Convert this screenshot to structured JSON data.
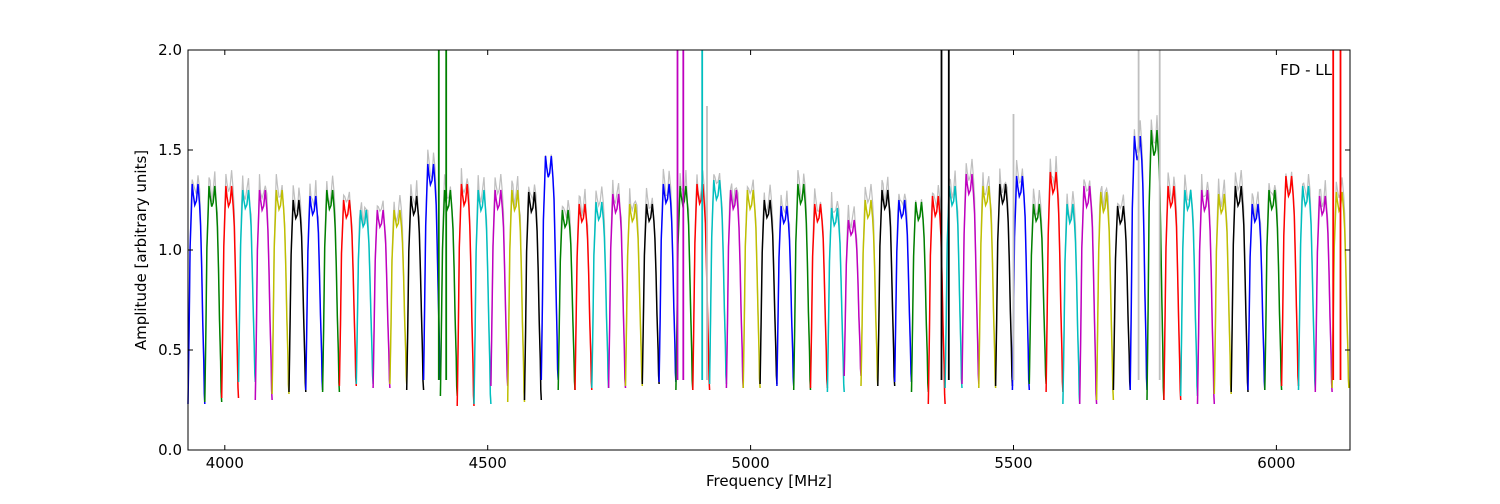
{
  "chart_data": {
    "type": "line",
    "annotation": "FD - LL",
    "xlabel": "Frequency [MHz]",
    "ylabel": "Amplitude [arbitrary units]",
    "xlim": [
      3930,
      6140
    ],
    "ylim": [
      0.0,
      2.0
    ],
    "x_ticks": [
      4000,
      4500,
      5000,
      5500,
      6000
    ],
    "x_tick_labels": [
      "4000",
      "4500",
      "5000",
      "5500",
      "6000"
    ],
    "y_ticks": [
      0.0,
      0.5,
      1.0,
      1.5,
      2.0
    ],
    "y_tick_labels": [
      "0.0",
      "0.5",
      "1.0",
      "1.5",
      "2.0"
    ],
    "grid": false,
    "background_series_color": "#bfbfbf",
    "color_cycle": [
      "#0000ff",
      "#008000",
      "#ff0000",
      "#00bfbf",
      "#bf00bf",
      "#bfbf00",
      "#000000"
    ],
    "channel_width_mhz": 32,
    "channel_profile": {
      "x_offsets": [
        0,
        2,
        4,
        6,
        8,
        10,
        13,
        16,
        19,
        22,
        24,
        26,
        28,
        30,
        31,
        32
      ],
      "shape": [
        0.25,
        0.6,
        1.0,
        1.15,
        1.3,
        1.25,
        1.2,
        1.22,
        1.3,
        1.2,
        1.1,
        0.9,
        0.65,
        0.45,
        0.3,
        0.25
      ]
    },
    "channel_starts": [
      3930,
      3962,
      3994,
      4026,
      4058,
      4090,
      4122,
      4154,
      4186,
      4218,
      4250,
      4282,
      4314,
      4346,
      4378,
      4410,
      4442,
      4474,
      4506,
      4538,
      4570,
      4602,
      4634,
      4666,
      4698,
      4730,
      4762,
      4794,
      4826,
      4858,
      4890,
      4922,
      4954,
      4986,
      5018,
      5050,
      5082,
      5114,
      5146,
      5178,
      5210,
      5242,
      5274,
      5306,
      5338,
      5370,
      5402,
      5434,
      5466,
      5498,
      5530,
      5562,
      5594,
      5626,
      5658,
      5690,
      5722,
      5754,
      5786,
      5818,
      5850,
      5882,
      5914,
      5946,
      5978,
      6010,
      6042,
      6074,
      6106
    ],
    "channel_peak_levels": [
      1.33,
      1.32,
      1.32,
      1.3,
      1.3,
      1.3,
      1.25,
      1.27,
      1.3,
      1.25,
      1.2,
      1.2,
      1.2,
      1.27,
      1.43,
      1.3,
      1.33,
      1.3,
      1.3,
      1.3,
      1.29,
      1.47,
      1.2,
      1.23,
      1.24,
      1.28,
      1.23,
      1.23,
      1.33,
      1.32,
      1.33,
      1.35,
      1.3,
      1.3,
      1.25,
      1.22,
      1.33,
      1.23,
      1.21,
      1.15,
      1.25,
      1.3,
      1.25,
      1.24,
      1.27,
      1.32,
      1.38,
      1.32,
      1.33,
      1.37,
      1.23,
      1.39,
      1.23,
      1.32,
      1.29,
      1.22,
      1.57,
      1.6,
      1.32,
      1.3,
      1.3,
      1.28,
      1.32,
      1.23,
      1.3,
      1.37,
      1.32,
      1.27,
      1.29
    ],
    "channel_min_levels": [
      0.23,
      0.24,
      0.26,
      0.34,
      0.25,
      0.28,
      0.29,
      0.3,
      0.29,
      0.32,
      0.33,
      0.31,
      0.33,
      0.3,
      0.35,
      0.27,
      0.22,
      0.23,
      0.32,
      0.24,
      0.25,
      0.35,
      0.3,
      0.3,
      0.31,
      0.31,
      0.32,
      0.33,
      0.34,
      0.3,
      0.3,
      0.33,
      0.31,
      0.31,
      0.33,
      0.32,
      0.3,
      0.31,
      0.29,
      0.37,
      0.32,
      0.32,
      0.34,
      0.29,
      0.23,
      0.31,
      0.33,
      0.31,
      0.32,
      0.3,
      0.33,
      0.29,
      0.23,
      0.23,
      0.25,
      0.3,
      0.3,
      0.25,
      0.25,
      0.27,
      0.23,
      0.28,
      0.29,
      0.3,
      0.3,
      0.32,
      0.3,
      0.29,
      0.31
    ],
    "spikes": [
      {
        "x": 4407,
        "y": 2.0,
        "color": "#008000"
      },
      {
        "x": 4421,
        "y": 2.0,
        "color": "#008000"
      },
      {
        "x": 4861,
        "y": 2.0,
        "color": "#bf00bf"
      },
      {
        "x": 4872,
        "y": 2.0,
        "color": "#bf00bf"
      },
      {
        "x": 4908,
        "y": 2.0,
        "color": "#00bfbf"
      },
      {
        "x": 4917,
        "y": 1.72,
        "color": "#bfbfbf"
      },
      {
        "x": 5363,
        "y": 2.0,
        "color": "#000000"
      },
      {
        "x": 5377,
        "y": 2.0,
        "color": "#000000"
      },
      {
        "x": 5500,
        "y": 1.68,
        "color": "#bfbfbf"
      },
      {
        "x": 5738,
        "y": 2.0,
        "color": "#bfbfbf"
      },
      {
        "x": 5778,
        "y": 2.0,
        "color": "#bfbfbf"
      },
      {
        "x": 6108,
        "y": 2.0,
        "color": "#ff0000"
      },
      {
        "x": 6122,
        "y": 2.0,
        "color": "#ff0000"
      }
    ]
  }
}
